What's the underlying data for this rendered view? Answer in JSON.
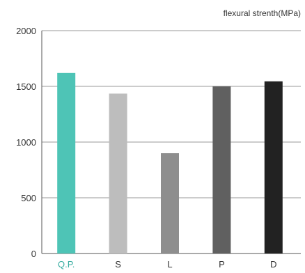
{
  "chart_data": {
    "type": "bar",
    "title": "",
    "unit_label": "flexural strenth(MPa)",
    "xlabel": "",
    "ylabel": "",
    "categories": [
      "Q.P.",
      "S",
      "L",
      "P",
      "D"
    ],
    "values": [
      1620,
      1435,
      900,
      1500,
      1545
    ],
    "ylim": [
      0,
      2000
    ],
    "yticks": [
      0,
      500,
      1000,
      1500,
      2000
    ],
    "grid": true,
    "legend": "none",
    "bar_colors": [
      "#4ec4b6",
      "#bdbdbd",
      "#8e8e8e",
      "#606060",
      "#222222"
    ],
    "category_label_colors": [
      "#3aaea2",
      "#333333",
      "#333333",
      "#333333",
      "#333333"
    ]
  }
}
